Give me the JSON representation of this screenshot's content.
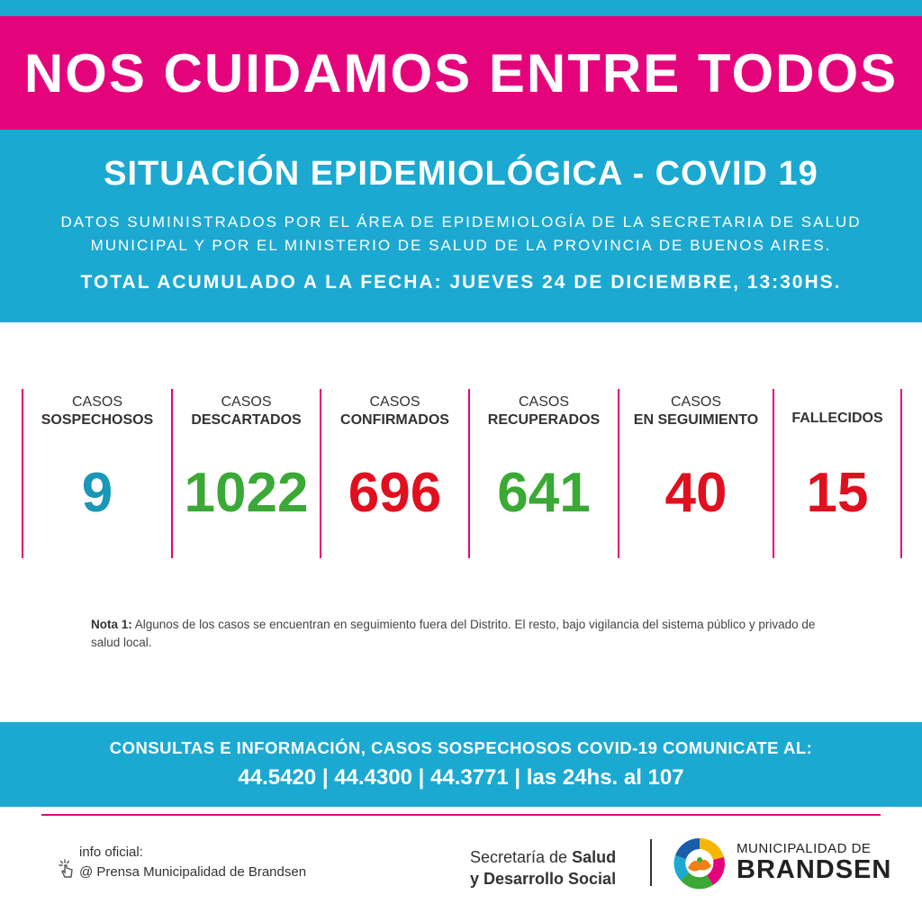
{
  "banner": {
    "title": "NOS CUIDAMOS ENTRE TODOS"
  },
  "header": {
    "title": "SITUACIÓN EPIDEMIOLÓGICA - COVID 19",
    "source_line1": "DATOS SUMINISTRADOS POR EL ÁREA DE EPIDEMIOLOGÍA DE LA SECRETARIA DE SALUD",
    "source_line2": "MUNICIPAL Y POR EL MINISTERIO DE SALUD DE LA PROVINCIA DE BUENOS AIRES.",
    "total": "TOTAL ACUMULADO A LA FECHA: JUEVES 24 DE DICIEMBRE, 13:30HS."
  },
  "stats": [
    {
      "line1": "CASOS",
      "line2": "SOSPECHOSOS",
      "value": "9",
      "color": "#1a97b7"
    },
    {
      "line1": "CASOS",
      "line2": "DESCARTADOS",
      "value": "1022",
      "color": "#3aa935"
    },
    {
      "line1": "CASOS",
      "line2": "CONFIRMADOS",
      "value": "696",
      "color": "#e0101e"
    },
    {
      "line1": "CASOS",
      "line2": "RECUPERADOS",
      "value": "641",
      "color": "#3aa935"
    },
    {
      "line1": "CASOS",
      "line2": "EN SEGUIMIENTO",
      "value": "40",
      "color": "#e0101e"
    },
    {
      "line1": "",
      "line2": "FALLECIDOS",
      "value": "15",
      "color": "#e0101e"
    }
  ],
  "note": {
    "label": "Nota 1:",
    "text": " Algunos de los casos se encuentran en seguimiento fuera del Distrito. El resto, bajo vigilancia del sistema público y privado de salud local."
  },
  "contact": {
    "line1": "CONSULTAS E INFORMACIÓN, CASOS SOSPECHOSOS COVID-19 COMUNICATE AL:",
    "line2": "44.5420 | 44.4300 | 44.3771 | las 24hs. al 107"
  },
  "footer": {
    "info_label": "info oficial:",
    "info_page": "@ Prensa Municipalidad de Brandsen",
    "secretaria_prefix": "Secretaría de ",
    "secretaria_bold1": "Salud",
    "secretaria_bold2": "y Desarrollo Social",
    "muni_line1": "MUNICIPALIDAD DE",
    "muni_line2": "BRANDSEN"
  },
  "colors": {
    "pink": "#e5037c",
    "blue": "#1ba9d1",
    "green": "#3aa935",
    "red": "#e0101e",
    "teal": "#1a97b7"
  },
  "icons": [
    "click-hand-icon",
    "municipal-logo-icon"
  ]
}
